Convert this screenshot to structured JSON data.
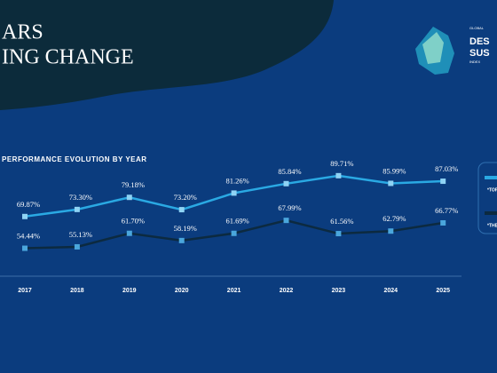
{
  "header": {
    "title_lines": [
      "ARS",
      "ING CHANGE"
    ]
  },
  "logo": {
    "lines": [
      "GLOBAL",
      "DES",
      "SUS",
      "INDEX"
    ]
  },
  "chart_data": {
    "type": "line",
    "subtitle": "PERFORMANCE EVOLUTION BY YEAR",
    "categories": [
      "2017",
      "2018",
      "2019",
      "2020",
      "2021",
      "2022",
      "2023",
      "2024",
      "2025"
    ],
    "series": [
      {
        "name": "*TOP",
        "color": "#2aa9e3",
        "marker_color": "#8fd3f4",
        "values": [
          69.87,
          73.3,
          79.18,
          73.2,
          81.26,
          85.84,
          89.71,
          85.99,
          87.03
        ],
        "value_labels": [
          "69.87%",
          "73.30%",
          "79.18%",
          "73.20%",
          "81.26%",
          "85.84%",
          "89.71%",
          "85.99%",
          "87.03%"
        ]
      },
      {
        "name": "*THE",
        "color": "#0c2a40",
        "marker_color": "#4aa6dc",
        "values": [
          54.44,
          55.13,
          61.7,
          58.19,
          61.69,
          67.99,
          61.56,
          62.79,
          66.77
        ],
        "value_labels": [
          "54.44%",
          "55.13%",
          "61.70%",
          "58.19%",
          "61.69%",
          "67.99%",
          "61.56%",
          "62.79%",
          "66.77%"
        ]
      }
    ],
    "ylim": [
      40,
      100
    ]
  }
}
